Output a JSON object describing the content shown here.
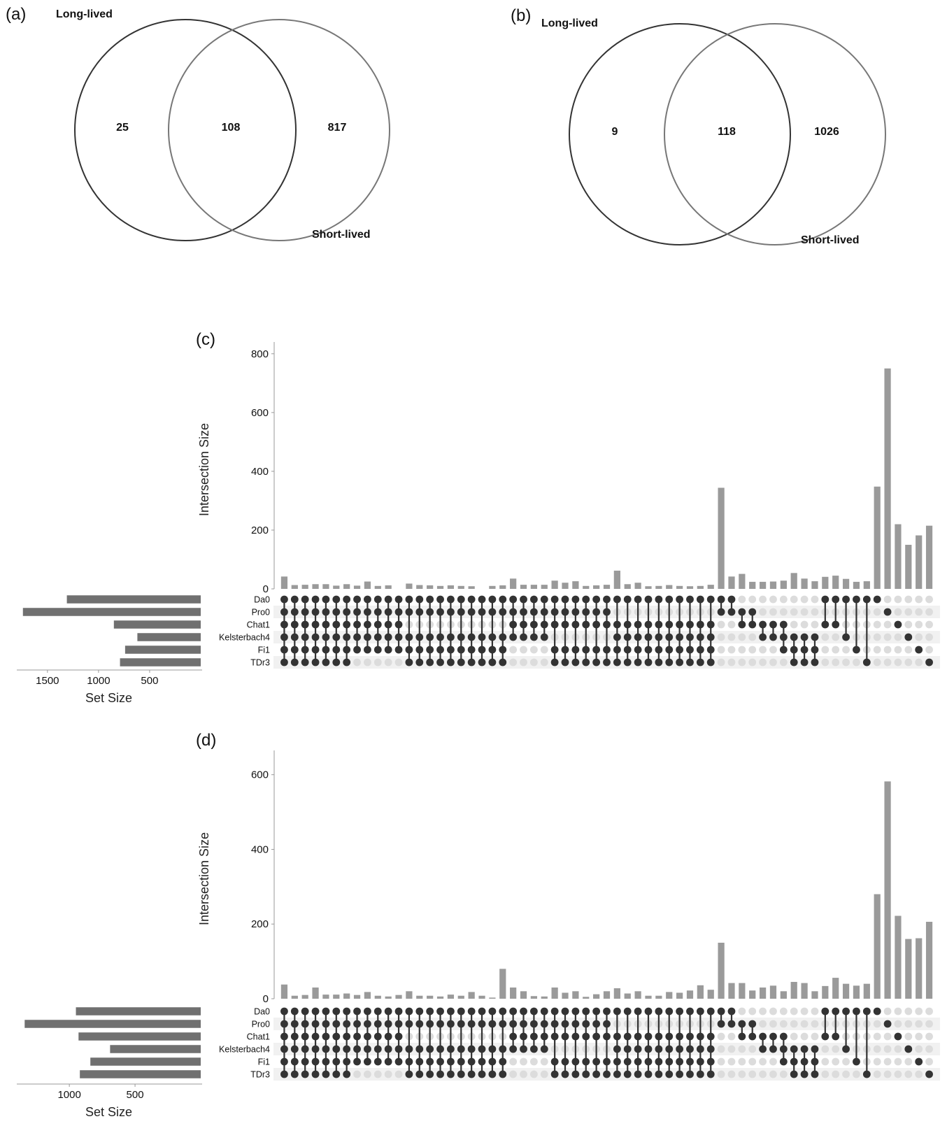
{
  "panel_a": {
    "label": "(a)",
    "left_set": "Long-lived",
    "right_set": "Short-lived",
    "left_only": "25",
    "both": "108",
    "right_only": "817"
  },
  "panel_b": {
    "label": "(b)",
    "left_set": "Long-lived",
    "right_set": "Short-lived",
    "left_only": "9",
    "both": "118",
    "right_only": "1026"
  },
  "colors": {
    "bar": "#9a9a9a",
    "setbar": "#707070",
    "dot_on": "#333333",
    "dot_off": "#dcdcdc",
    "stripe": "#f1f1f1"
  },
  "chart_data": [
    {
      "type": "bar",
      "panel": "(c)",
      "ylabel": "Intersection Size",
      "ylim": [
        0,
        840
      ],
      "yticks": [
        0,
        200,
        400,
        600,
        800
      ],
      "sets": [
        "Da0",
        "Pro0",
        "Chat1",
        "Kelsterbach4",
        "Fi1",
        "TDr3"
      ],
      "set_sizes": [
        1310,
        1740,
        850,
        620,
        740,
        790
      ],
      "set_size_label": "Set Size",
      "set_size_ticks": [
        1500,
        1000,
        500
      ],
      "set_size_max": 1800,
      "values": [
        42,
        13,
        14,
        16,
        16,
        11,
        16,
        11,
        25,
        10,
        12,
        0,
        18,
        13,
        12,
        10,
        12,
        10,
        9,
        0,
        10,
        12,
        35,
        14,
        14,
        14,
        28,
        21,
        26,
        10,
        12,
        14,
        62,
        16,
        21,
        9,
        10,
        13,
        10,
        9,
        10,
        14,
        344,
        42,
        51,
        24,
        24,
        25,
        28,
        54,
        35,
        26,
        41,
        45,
        34,
        24,
        26,
        348,
        750,
        220,
        150,
        182,
        215
      ],
      "membership": [
        "111111",
        "111111",
        "111111",
        "111111",
        "111111",
        "111111",
        "111111",
        "111110",
        "111110",
        "111110",
        "111110",
        "111110",
        "110111",
        "110111",
        "110111",
        "110111",
        "110111",
        "110111",
        "110111",
        "110111",
        "110111",
        "110111",
        "111100",
        "111100",
        "111100",
        "111100",
        "111011",
        "111011",
        "111011",
        "111011",
        "111011",
        "111011",
        "101111",
        "101111",
        "101111",
        "101111",
        "101111",
        "101111",
        "101111",
        "101111",
        "101111",
        "101111",
        "110000",
        "110000",
        "011000",
        "011000",
        "001100",
        "001100",
        "001110",
        "000111",
        "000111",
        "000111",
        "101000",
        "101000",
        "100100",
        "100010",
        "100001",
        "100000",
        "010000",
        "001000",
        "000100",
        "000010",
        "000001"
      ]
    },
    {
      "type": "bar",
      "panel": "(d)",
      "ylabel": "Intersection Size",
      "ylim": [
        0,
        665
      ],
      "yticks": [
        0,
        200,
        400,
        600
      ],
      "sets": [
        "Da0",
        "Pro0",
        "Chat1",
        "Kelsterbach4",
        "Fi1",
        "TDr3"
      ],
      "set_sizes": [
        950,
        1340,
        930,
        690,
        840,
        920
      ],
      "set_size_label": "Set Size",
      "set_size_ticks": [
        1000,
        500
      ],
      "set_size_max": 1400,
      "values": [
        38,
        8,
        10,
        30,
        11,
        11,
        14,
        10,
        18,
        8,
        6,
        10,
        20,
        8,
        8,
        6,
        11,
        8,
        18,
        8,
        3,
        80,
        30,
        20,
        7,
        6,
        30,
        16,
        20,
        5,
        12,
        20,
        28,
        14,
        20,
        8,
        8,
        18,
        16,
        22,
        36,
        24,
        150,
        42,
        42,
        22,
        30,
        35,
        20,
        45,
        42,
        20,
        34,
        56,
        40,
        35,
        40,
        280,
        582,
        222,
        160,
        162,
        206
      ],
      "membership": [
        "111111",
        "111111",
        "111111",
        "111111",
        "111111",
        "111111",
        "111111",
        "111110",
        "111110",
        "111110",
        "111110",
        "111110",
        "110111",
        "110111",
        "110111",
        "110111",
        "110111",
        "110111",
        "110111",
        "110111",
        "110111",
        "110111",
        "111100",
        "111100",
        "111100",
        "111100",
        "111011",
        "111011",
        "111011",
        "111011",
        "111011",
        "111011",
        "101111",
        "101111",
        "101111",
        "101111",
        "101111",
        "101111",
        "101111",
        "101111",
        "101111",
        "101111",
        "110000",
        "110000",
        "011000",
        "011000",
        "001100",
        "001100",
        "001110",
        "000111",
        "000111",
        "000111",
        "101000",
        "101000",
        "100100",
        "100010",
        "100001",
        "100000",
        "010000",
        "001000",
        "000100",
        "000010",
        "000001"
      ]
    }
  ]
}
